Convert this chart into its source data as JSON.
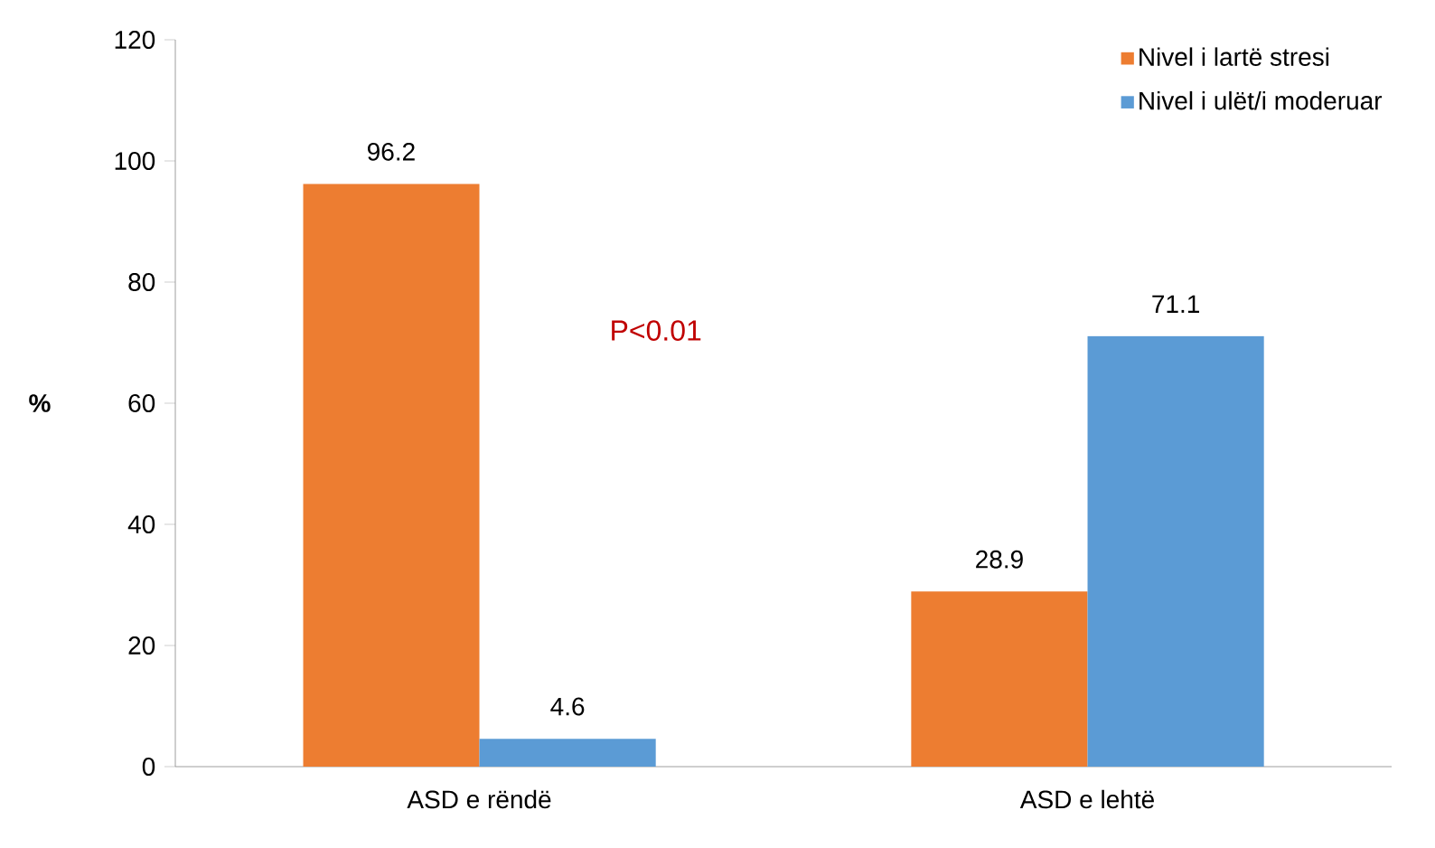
{
  "chart_data": {
    "type": "bar",
    "ylabel": "%",
    "categories": [
      "ASD e rëndë",
      "ASD e lehtë"
    ],
    "series": [
      {
        "name": "Nivel i lartë stresi",
        "color": "#ed7d31",
        "values": [
          96.2,
          28.9
        ]
      },
      {
        "name": "Nivel i ulët/i moderuar",
        "color": "#5b9bd5",
        "values": [
          4.6,
          71.1
        ]
      }
    ],
    "ylim": [
      0,
      120
    ],
    "yticks": [
      0,
      20,
      40,
      60,
      80,
      100,
      120
    ],
    "data_labels": true,
    "legend": "top right",
    "grid": false,
    "annotations": [
      "P<0.01"
    ]
  }
}
